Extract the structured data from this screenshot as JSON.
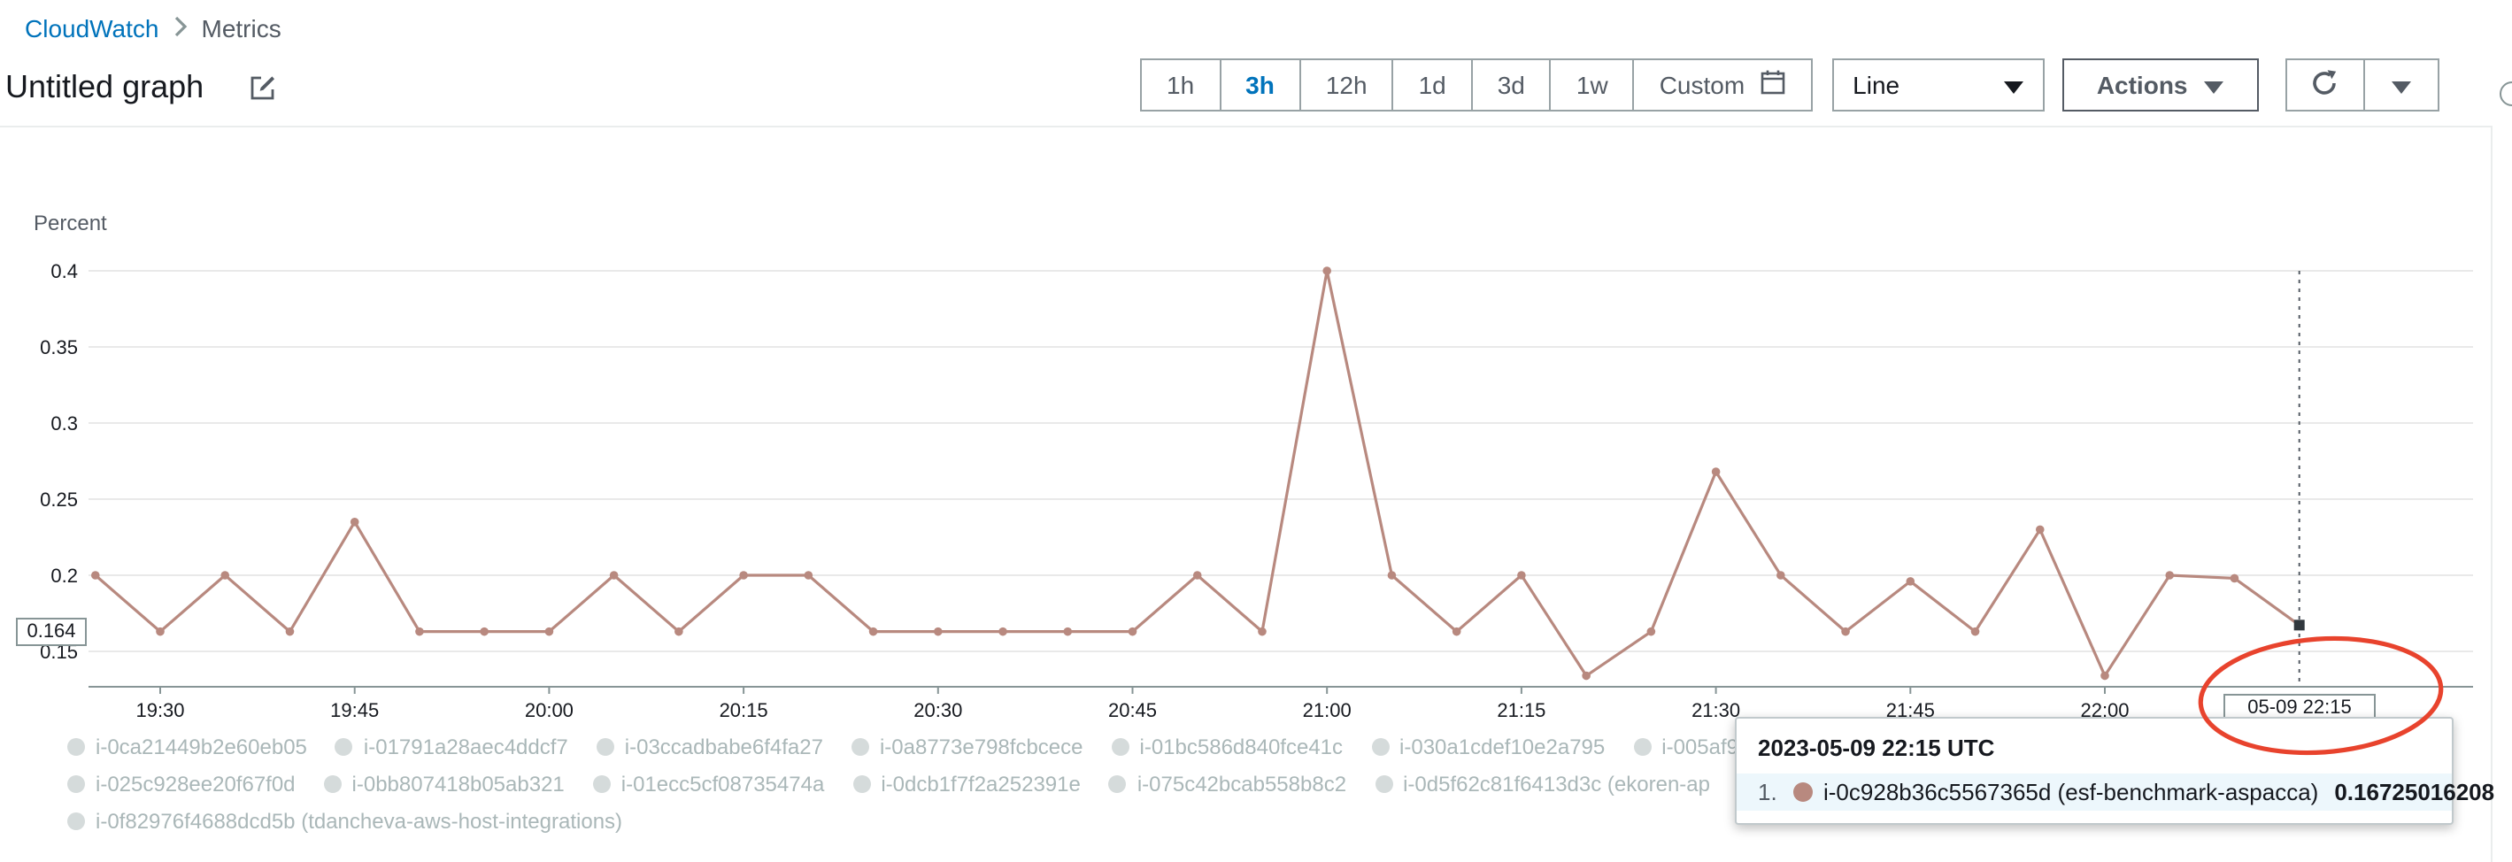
{
  "colors": {
    "annotation": "#e8432d",
    "accent": "#0073bb"
  },
  "breadcrumb": {
    "items": [
      "CloudWatch",
      "Metrics"
    ]
  },
  "header": {
    "title": "Untitled graph"
  },
  "toolbar": {
    "ranges": [
      {
        "label": "1h",
        "selected": false
      },
      {
        "label": "3h",
        "selected": true
      },
      {
        "label": "12h",
        "selected": false
      },
      {
        "label": "1d",
        "selected": false
      },
      {
        "label": "3d",
        "selected": false
      },
      {
        "label": "1w",
        "selected": false
      },
      {
        "label": "Custom",
        "selected": false
      }
    ],
    "chart_type": "Line",
    "actions_label": "Actions"
  },
  "chart_data": {
    "type": "line",
    "title": "Untitled graph",
    "ylabel": "Percent",
    "yticks": [
      0.4,
      0.35,
      0.3,
      0.25,
      0.2,
      0.15
    ],
    "ylim": [
      0.127,
      0.42
    ],
    "xticks": [
      "19:30",
      "19:45",
      "20:00",
      "20:15",
      "20:30",
      "20:45",
      "21:00",
      "21:15",
      "21:30",
      "21:45",
      "22:00"
    ],
    "x_tick_interval_min": 15,
    "x_start_min": -5,
    "x_step_min": 5,
    "grid": true,
    "legend_position": "bottom",
    "series": [
      {
        "name": "i-0c928b36c5567365d (esf-benchmark-aspacca)",
        "color": "#b8897f",
        "values": [
          0.2,
          0.163,
          0.2,
          0.163,
          0.235,
          0.163,
          0.163,
          0.163,
          0.2,
          0.163,
          0.2,
          0.2,
          0.163,
          0.163,
          0.163,
          0.163,
          0.163,
          0.2,
          0.163,
          0.4,
          0.2,
          0.163,
          0.2,
          0.134,
          0.163,
          0.268,
          0.2,
          0.163,
          0.196,
          0.163,
          0.23,
          0.134,
          0.2,
          0.198,
          0.16725016208
        ]
      }
    ],
    "crosshair": {
      "x_min": 165,
      "x_label": "05-09 22:15",
      "y_label": "0.164",
      "value": 0.16725016208
    }
  },
  "tooltip": {
    "title": "2023-05-09 22:15 UTC",
    "rows": [
      {
        "rank": "1.",
        "color": "#b8897f",
        "name": "i-0c928b36c5567365d (esf-benchmark-aspacca)",
        "value": "0.16725016208"
      }
    ]
  },
  "legend": {
    "rows": [
      [
        "i-0ca21449b2e60eb05",
        "i-01791a28aec4ddcf7",
        "i-03ccadbabe6f4fa27",
        "i-0a8773e798fcbcece",
        "i-01bc586d840fce41c",
        "i-030a1cdef10e2a795",
        "i-005af9"
      ],
      [
        "i-025c928ee20f67f0d",
        "i-0bb807418b05ab321",
        "i-01ecc5cf08735474a",
        "i-0dcb1f7f2a252391e",
        "i-075c42bcab558b8c2",
        "i-0d5f62c81f6413d3c (ekoren-ap"
      ],
      [
        "i-0f82976f4688dcd5b (tdancheva-aws-host-integrations)"
      ]
    ]
  }
}
